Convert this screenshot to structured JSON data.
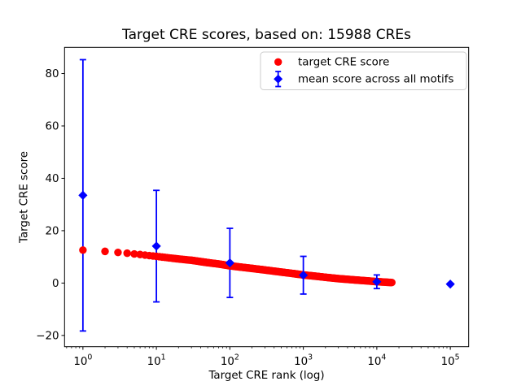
{
  "window": {
    "background": "#ffffff"
  },
  "chart_data": {
    "type": "scatter",
    "title": "Target CRE scores, based on: 15988 CREs",
    "xlabel": "Target CRE rank (log)",
    "ylabel": "Target CRE score",
    "x_scale": "log",
    "grid": false,
    "xlim_log10": [
      -0.25,
      5.25
    ],
    "ylim": [
      -24.3,
      90.0
    ],
    "x_ticks": {
      "values": [
        1,
        10,
        100,
        1000,
        10000,
        100000
      ],
      "labels": [
        [
          "10",
          "0"
        ],
        [
          "10",
          "1"
        ],
        [
          "10",
          "2"
        ],
        [
          "10",
          "3"
        ],
        [
          "10",
          "4"
        ],
        [
          "10",
          "5"
        ]
      ]
    },
    "y_ticks": {
      "values": [
        -20,
        0,
        20,
        40,
        60,
        80
      ],
      "labels": [
        "−20",
        "0",
        "20",
        "40",
        "60",
        "80"
      ]
    },
    "colors": {
      "target_score": "#ff0000",
      "mean_score": "#0000ff",
      "legend_edge": "#cccccc",
      "axes_edge": "#000000"
    },
    "legend": {
      "position": "upper right",
      "entries": [
        {
          "label": "target CRE score",
          "marker": "circle",
          "color": "#ff0000"
        },
        {
          "label": "mean score across all motifs",
          "marker": "diamond-errorbar",
          "color": "#0000ff"
        }
      ]
    },
    "series": [
      {
        "name": "target CRE score",
        "type": "scatter-dense",
        "marker": "circle",
        "color": "#ff0000",
        "n_points_total": 15988,
        "note": "15988 points sorted by rank; values sampled from the rendered curve, log-interpolated",
        "samples": [
          [
            1,
            12.6
          ],
          [
            2,
            12.1
          ],
          [
            3,
            11.7
          ],
          [
            4,
            11.4
          ],
          [
            5,
            11.1
          ],
          [
            6,
            10.9
          ],
          [
            7,
            10.7
          ],
          [
            8,
            10.5
          ],
          [
            9,
            10.35
          ],
          [
            10,
            10.2
          ],
          [
            15,
            9.6
          ],
          [
            20,
            9.2
          ],
          [
            30,
            8.7
          ],
          [
            50,
            7.8
          ],
          [
            70,
            7.3
          ],
          [
            100,
            6.6
          ],
          [
            150,
            6.0
          ],
          [
            200,
            5.6
          ],
          [
            300,
            5.0
          ],
          [
            500,
            4.2
          ],
          [
            700,
            3.7
          ],
          [
            1000,
            3.1
          ],
          [
            1500,
            2.6
          ],
          [
            2000,
            2.2
          ],
          [
            3000,
            1.7
          ],
          [
            5000,
            1.2
          ],
          [
            7000,
            0.9
          ],
          [
            10000,
            0.55
          ],
          [
            13000,
            0.35
          ],
          [
            15988,
            0.2
          ]
        ]
      },
      {
        "name": "mean score across all motifs",
        "type": "errorbar",
        "marker": "diamond",
        "color": "#0000ff",
        "points": [
          {
            "rank": 1,
            "mean": 33.5,
            "err": 51.8
          },
          {
            "rank": 10,
            "mean": 14.1,
            "err": 21.3
          },
          {
            "rank": 100,
            "mean": 7.7,
            "err": 13.2
          },
          {
            "rank": 1000,
            "mean": 3.0,
            "err": 7.2
          },
          {
            "rank": 10000,
            "mean": 0.5,
            "err": 2.6
          },
          {
            "rank": 100000,
            "mean": -0.4,
            "err": 0.3
          }
        ]
      }
    ]
  }
}
